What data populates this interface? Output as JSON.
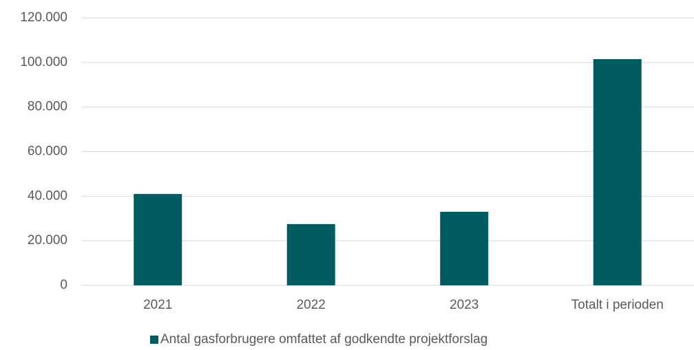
{
  "chart_data": {
    "type": "bar",
    "categories": [
      "2021",
      "2022",
      "2023",
      "Totalt i perioden"
    ],
    "series": [
      {
        "name": "Antal gasforbrugere omfattet af godkendte projektforslag",
        "color": "#005c60",
        "values": [
          41000,
          27500,
          33000,
          101500
        ]
      }
    ],
    "ylim": [
      0,
      120000
    ],
    "yticks": [
      0,
      {
        "value": 20000,
        "label": "20.000"
      },
      {
        "value": 40000,
        "label": "40.000"
      },
      {
        "value": 60000,
        "label": "60.000"
      },
      {
        "value": 80000,
        "label": "80.000"
      },
      {
        "value": 100000,
        "label": "100.000"
      },
      {
        "value": 120000,
        "label": "120.000"
      }
    ],
    "grid": true,
    "legend": "bottom"
  }
}
